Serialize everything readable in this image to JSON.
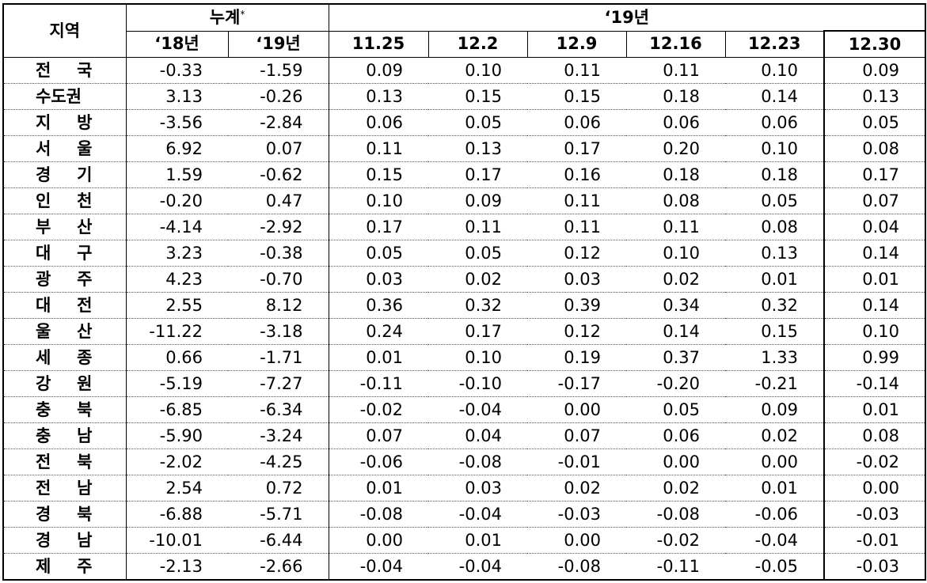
{
  "header": {
    "region": "지역",
    "cumulative": "누계",
    "cumulative_mark": "*",
    "year_group": "‘19년",
    "columns": [
      "‘18년",
      "‘19년",
      "11.25",
      "12.2",
      "12.9",
      "12.16",
      "12.23",
      "12.30"
    ]
  },
  "rows": [
    {
      "region": "전 국",
      "values": [
        "-0.33",
        "-1.59",
        "0.09",
        "0.10",
        "0.11",
        "0.11",
        "0.10",
        "0.09"
      ]
    },
    {
      "region": "수도권",
      "values": [
        "3.13",
        "-0.26",
        "0.13",
        "0.15",
        "0.15",
        "0.18",
        "0.14",
        "0.13"
      ]
    },
    {
      "region": "지 방",
      "values": [
        "-3.56",
        "-2.84",
        "0.06",
        "0.05",
        "0.06",
        "0.06",
        "0.06",
        "0.05"
      ]
    },
    {
      "region": "서 울",
      "values": [
        "6.92",
        "0.07",
        "0.11",
        "0.13",
        "0.17",
        "0.20",
        "0.10",
        "0.08"
      ]
    },
    {
      "region": "경 기",
      "values": [
        "1.59",
        "-0.62",
        "0.15",
        "0.17",
        "0.16",
        "0.18",
        "0.18",
        "0.17"
      ]
    },
    {
      "region": "인 천",
      "values": [
        "-0.20",
        "0.47",
        "0.10",
        "0.09",
        "0.11",
        "0.08",
        "0.05",
        "0.07"
      ]
    },
    {
      "region": "부 산",
      "values": [
        "-4.14",
        "-2.92",
        "0.17",
        "0.11",
        "0.11",
        "0.11",
        "0.08",
        "0.04"
      ]
    },
    {
      "region": "대 구",
      "values": [
        "3.23",
        "-0.38",
        "0.05",
        "0.05",
        "0.12",
        "0.10",
        "0.13",
        "0.14"
      ]
    },
    {
      "region": "광 주",
      "values": [
        "4.23",
        "-0.70",
        "0.03",
        "0.02",
        "0.03",
        "0.02",
        "0.01",
        "0.01"
      ]
    },
    {
      "region": "대 전",
      "values": [
        "2.55",
        "8.12",
        "0.36",
        "0.32",
        "0.39",
        "0.34",
        "0.32",
        "0.14"
      ]
    },
    {
      "region": "울 산",
      "values": [
        "-11.22",
        "-3.18",
        "0.24",
        "0.17",
        "0.12",
        "0.14",
        "0.15",
        "0.10"
      ]
    },
    {
      "region": "세 종",
      "values": [
        "0.66",
        "-1.71",
        "0.01",
        "0.10",
        "0.19",
        "0.37",
        "1.33",
        "0.99"
      ]
    },
    {
      "region": "강 원",
      "values": [
        "-5.19",
        "-7.27",
        "-0.11",
        "-0.10",
        "-0.17",
        "-0.20",
        "-0.21",
        "-0.14"
      ]
    },
    {
      "region": "충 북",
      "values": [
        "-6.85",
        "-6.34",
        "-0.02",
        "-0.04",
        "0.00",
        "0.05",
        "0.09",
        "0.01"
      ]
    },
    {
      "region": "충 남",
      "values": [
        "-5.90",
        "-3.24",
        "0.07",
        "0.04",
        "0.07",
        "0.06",
        "0.02",
        "0.08"
      ]
    },
    {
      "region": "전 북",
      "values": [
        "-2.02",
        "-4.25",
        "-0.06",
        "-0.08",
        "-0.01",
        "0.00",
        "0.00",
        "-0.02"
      ]
    },
    {
      "region": "전 남",
      "values": [
        "2.54",
        "0.72",
        "0.01",
        "0.03",
        "0.02",
        "0.02",
        "0.01",
        "0.00"
      ]
    },
    {
      "region": "경 북",
      "values": [
        "-6.88",
        "-5.71",
        "-0.08",
        "-0.04",
        "-0.03",
        "-0.08",
        "-0.06",
        "-0.03"
      ]
    },
    {
      "region": "경 남",
      "values": [
        "-10.01",
        "-6.44",
        "0.00",
        "0.01",
        "0.00",
        "-0.02",
        "-0.04",
        "-0.01"
      ]
    },
    {
      "region": "제 주",
      "values": [
        "-2.13",
        "-2.66",
        "-0.04",
        "-0.04",
        "-0.08",
        "-0.11",
        "-0.05",
        "-0.03"
      ]
    }
  ]
}
